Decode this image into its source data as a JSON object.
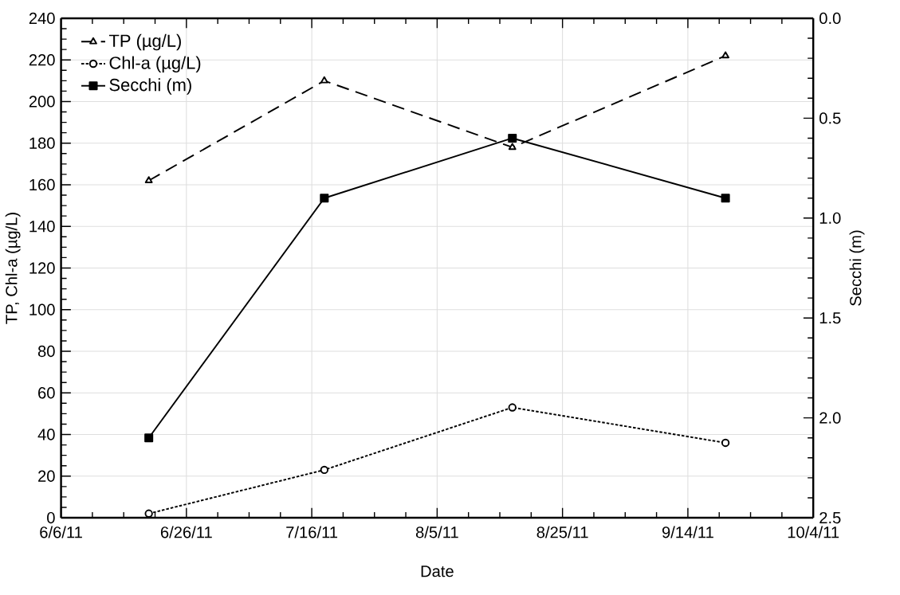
{
  "chart_data": {
    "type": "line",
    "xlabel": "Date",
    "ylabel": "TP, Chl-a (µg/L)",
    "y2label": "Secchi (m)",
    "x": [
      "2011-06-20",
      "2011-07-18",
      "2011-08-17",
      "2011-09-20"
    ],
    "xlim": [
      "2011-06-06",
      "2011-10-04"
    ],
    "xticks": [
      {
        "value": "2011-06-06",
        "label": "6/6/11"
      },
      {
        "value": "2011-06-26",
        "label": "6/26/11"
      },
      {
        "value": "2011-07-16",
        "label": "7/16/11"
      },
      {
        "value": "2011-08-05",
        "label": "8/5/11"
      },
      {
        "value": "2011-08-25",
        "label": "8/25/11"
      },
      {
        "value": "2011-09-14",
        "label": "9/14/11"
      },
      {
        "value": "2011-10-04",
        "label": "10/4/11"
      }
    ],
    "ylim": [
      0,
      240
    ],
    "yticks": [
      0,
      20,
      40,
      60,
      80,
      100,
      120,
      140,
      160,
      180,
      200,
      220,
      240
    ],
    "y2lim": [
      2.5,
      0.0
    ],
    "y2ticks": [
      {
        "value": 0.0,
        "label": "0.0"
      },
      {
        "value": 0.5,
        "label": "0.5"
      },
      {
        "value": 1.0,
        "label": "1.0"
      },
      {
        "value": 1.5,
        "label": "1.5"
      },
      {
        "value": 2.0,
        "label": "2.0"
      },
      {
        "value": 2.5,
        "label": "2.5"
      }
    ],
    "grid": true,
    "legend": "top left",
    "series": [
      {
        "name": "TP (µg/L)",
        "color": "#000000",
        "values": [
          162,
          210,
          178,
          222
        ],
        "marker": "triangle",
        "line_style": "dashed"
      },
      {
        "name": "Chl-a (µg/L)",
        "color": "#000000",
        "values": [
          2,
          23,
          53,
          36
        ],
        "marker": "circle",
        "line_style": "dotted"
      },
      {
        "name": "Secchi (m)",
        "color": "#000000",
        "values": [
          2.1,
          0.9,
          0.6,
          0.9
        ],
        "marker": "square",
        "line_style": "solid",
        "axis": "y2"
      }
    ]
  }
}
